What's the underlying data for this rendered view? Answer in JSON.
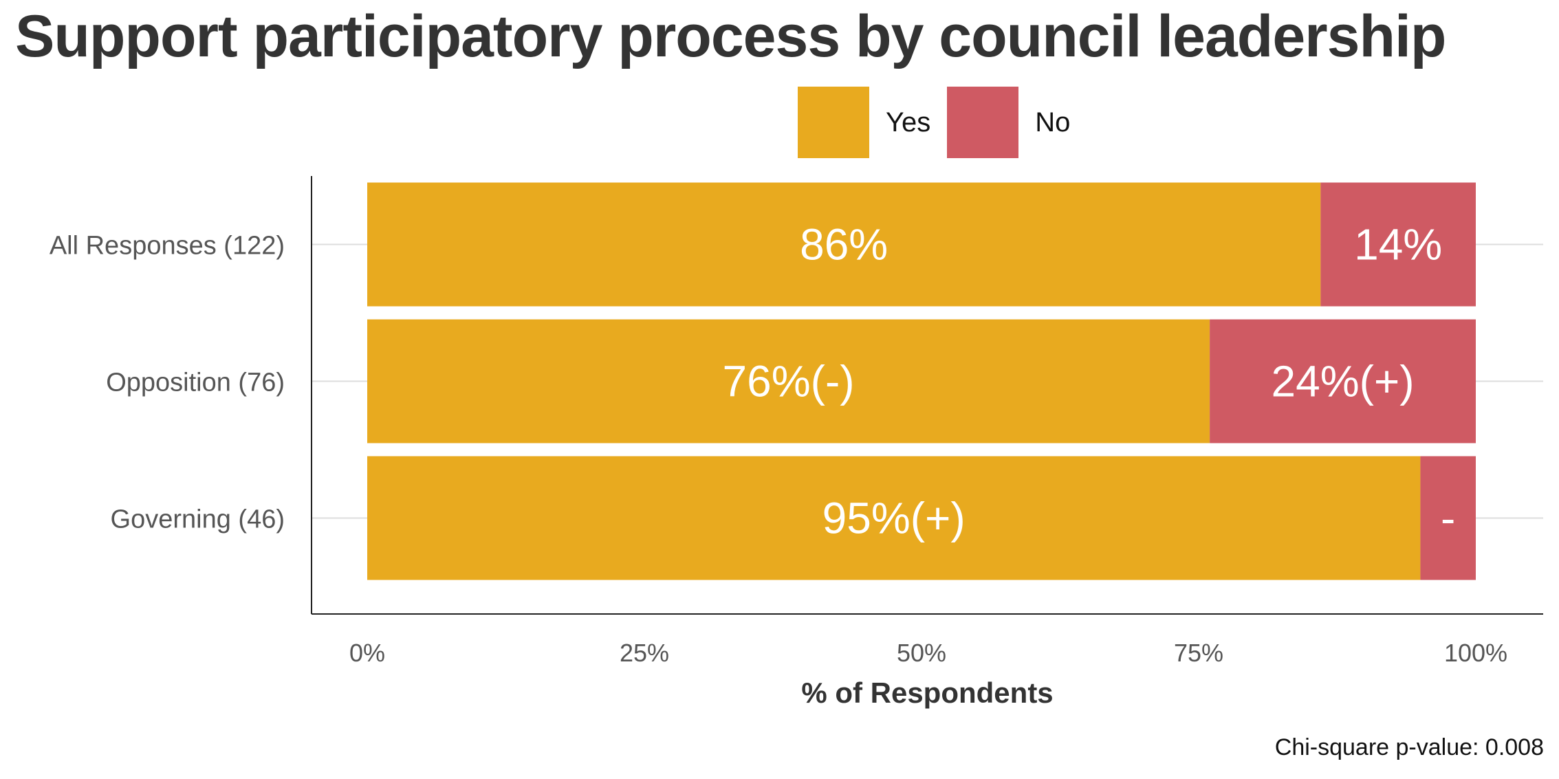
{
  "title": "Support participatory process by council leadership",
  "footnote": "Chi-square p-value: 0.008",
  "legend": [
    {
      "name": "Yes",
      "color": "#E8AA1F"
    },
    {
      "name": "No",
      "color": "#CF5A63"
    }
  ],
  "chart_data": {
    "type": "bar",
    "orientation": "horizontal",
    "stacked": true,
    "categories": [
      "All Responses (122)",
      "Opposition (76)",
      "Governing (46)"
    ],
    "series": [
      {
        "name": "Yes",
        "color": "#E8AA1F",
        "values": [
          86,
          76,
          95
        ],
        "labels": [
          "86%",
          "76%(-)",
          "95%(+)"
        ]
      },
      {
        "name": "No",
        "color": "#CF5A63",
        "values": [
          14,
          24,
          5
        ],
        "labels": [
          "14%",
          "24%(+)",
          "-"
        ]
      }
    ],
    "xlabel": "% of Respondents",
    "ylabel": "",
    "xlim": [
      0,
      100
    ],
    "xticks": [
      "0%",
      "25%",
      "50%",
      "75%",
      "100%"
    ],
    "xtick_values": [
      0,
      25,
      50,
      75,
      100
    ],
    "grid": "horizontal",
    "legend_position": "top"
  }
}
